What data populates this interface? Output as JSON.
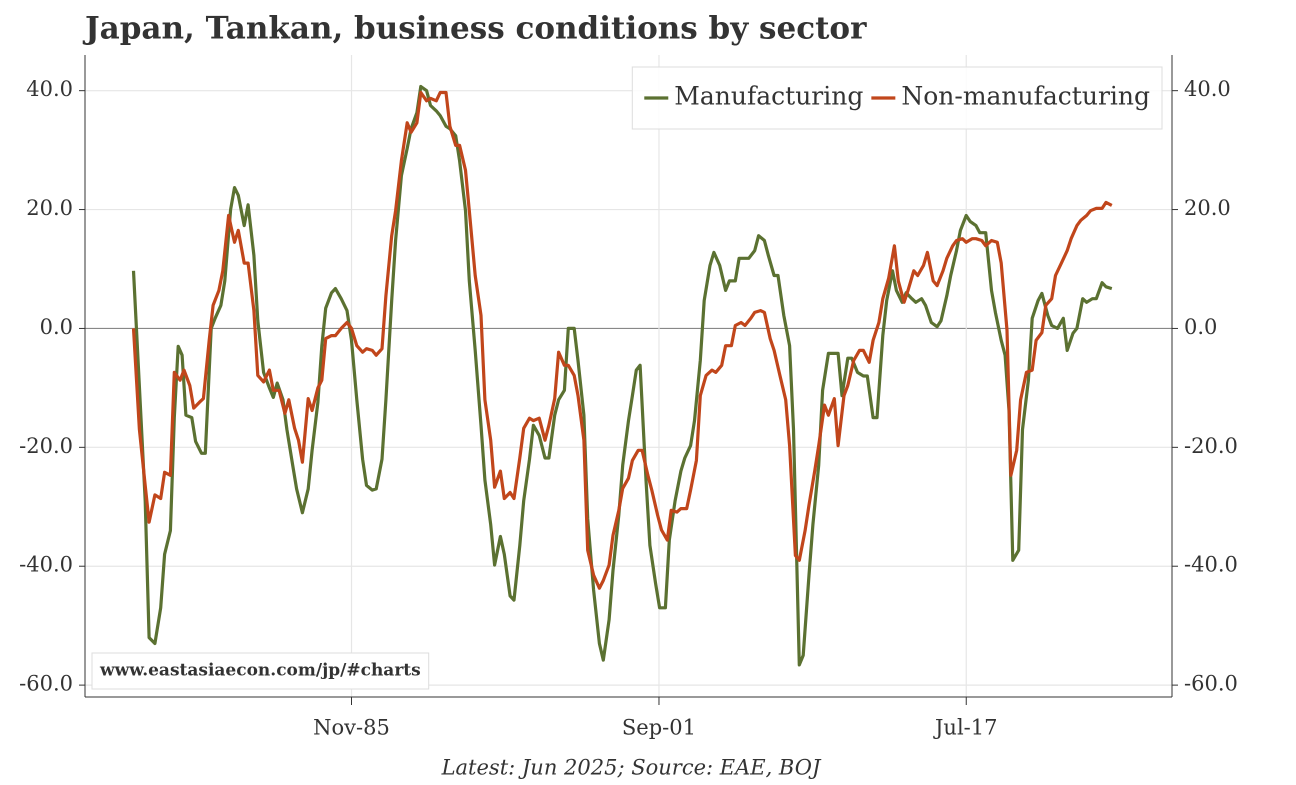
{
  "chart_data": {
    "type": "line",
    "title": "Japan, Tankan, business conditions by sector",
    "footnote": "Latest: Jun 2025; Source: EAE, BOJ",
    "watermark": "www.eastasiaecon.com/jp/#charts",
    "xlim": [
      1972.1,
      2028.1
    ],
    "xticks": [
      {
        "value": 1985.83,
        "label": "Nov-85"
      },
      {
        "value": 2001.67,
        "label": "Sep-01"
      },
      {
        "value": 2017.5,
        "label": "Jul-17"
      }
    ],
    "ylim": [
      -62,
      46
    ],
    "yticks": [
      {
        "value": -60,
        "label": "-60.0"
      },
      {
        "value": -40,
        "label": "-40.0"
      },
      {
        "value": -20,
        "label": "-20.0"
      },
      {
        "value": 0,
        "label": "0.0"
      },
      {
        "value": 20,
        "label": "20.0"
      },
      {
        "value": 40,
        "label": "40.0"
      }
    ],
    "grid": true,
    "legend": "upper right",
    "series": [
      {
        "name": "Manufacturing",
        "color": "#5b7131",
        "x": [
          1974.6,
          1975.2,
          1975.4,
          1975.7,
          1976.0,
          1976.2,
          1976.5,
          1976.7,
          1976.9,
          1977.1,
          1977.3,
          1977.6,
          1977.8,
          1978.1,
          1978.3,
          1978.6,
          1978.8,
          1979.1,
          1979.3,
          1979.6,
          1979.8,
          1980.0,
          1980.3,
          1980.5,
          1980.8,
          1981.0,
          1981.3,
          1981.6,
          1981.8,
          1982.0,
          1982.3,
          1982.5,
          1982.8,
          1983.0,
          1983.3,
          1983.6,
          1983.8,
          1984.1,
          1984.3,
          1984.5,
          1984.8,
          1985.0,
          1985.3,
          1985.6,
          1985.83,
          1986.1,
          1986.4,
          1986.6,
          1986.9,
          1987.1,
          1987.4,
          1987.6,
          1987.9,
          1988.1,
          1988.4,
          1988.7,
          1988.9,
          1989.2,
          1989.4,
          1989.7,
          1989.9,
          1990.2,
          1990.4,
          1990.7,
          1990.9,
          1991.2,
          1991.4,
          1991.7,
          1991.9,
          1992.2,
          1992.5,
          1992.7,
          1993.0,
          1993.2,
          1993.5,
          1993.7,
          1994.0,
          1994.2,
          1994.5,
          1994.7,
          1995.0,
          1995.2,
          1995.5,
          1995.8,
          1996.0,
          1996.3,
          1996.5,
          1996.8,
          1997.0,
          1997.3,
          1997.5,
          1997.8,
          1998.0,
          1998.3,
          1998.6,
          1998.8,
          1999.1,
          1999.3,
          1999.6,
          1999.8,
          2000.1,
          2000.3,
          2000.5,
          2000.7,
          2001.0,
          2001.2,
          2001.5,
          2001.7,
          2002.0,
          2002.2,
          2002.5,
          2002.8,
          2003.0,
          2003.3,
          2003.5,
          2003.8,
          2004.0,
          2004.3,
          2004.5,
          2004.8,
          2005.1,
          2005.3,
          2005.6,
          2005.8,
          2006.1,
          2006.3,
          2006.6,
          2006.8,
          2007.1,
          2007.3,
          2007.6,
          2007.8,
          2008.1,
          2008.4,
          2008.6,
          2008.9,
          2009.1,
          2009.4,
          2009.6,
          2009.9,
          2010.1,
          2010.4,
          2010.6,
          2010.9,
          2011.1,
          2011.4,
          2011.6,
          2011.9,
          2012.2,
          2012.4,
          2012.7,
          2012.9,
          2013.2,
          2013.4,
          2013.7,
          2013.9,
          2014.2,
          2014.4,
          2014.7,
          2014.9,
          2015.2,
          2015.4,
          2015.7,
          2016.0,
          2016.2,
          2016.5,
          2016.7,
          2017.0,
          2017.2,
          2017.5,
          2017.7,
          2018.0,
          2018.2,
          2018.5,
          2018.8,
          2019.0,
          2019.3,
          2019.5,
          2019.7,
          2019.9,
          2020.2,
          2020.4,
          2020.7,
          2020.9,
          2021.2,
          2021.4,
          2021.7,
          2021.9,
          2022.2,
          2022.5,
          2022.7,
          2023.0,
          2023.2,
          2023.5,
          2023.7,
          2024.0,
          2024.2,
          2024.5,
          2024.7,
          2025.0
        ],
        "values": [
          9.7,
          -29,
          -52,
          -53,
          -47,
          -38,
          -34,
          -15,
          -3,
          -4.5,
          -14.6,
          -15,
          -19,
          -21,
          -21,
          0,
          1.7,
          3.9,
          8,
          20,
          23.7,
          22.4,
          17.3,
          20.8,
          12.3,
          1.3,
          -7.4,
          -10,
          -11.6,
          -9.2,
          -12,
          -17,
          -23,
          -27,
          -31,
          -27,
          -20.5,
          -12.4,
          -3,
          3.4,
          6,
          6.7,
          5,
          3,
          -2,
          -12,
          -22,
          -26.4,
          -27.2,
          -27,
          -22,
          -12,
          4.7,
          14.8,
          25.7,
          30.3,
          33.6,
          36.3,
          40.7,
          40,
          37.5,
          36.6,
          35.8,
          34,
          33.6,
          32.4,
          28.2,
          19.8,
          8,
          -3.7,
          -16.3,
          -25.5,
          -33,
          -39.8,
          -35,
          -38,
          -45,
          -45.7,
          -36.5,
          -29,
          -22,
          -16.3,
          -18,
          -21.8,
          -21.8,
          -14.6,
          -12,
          -10.4,
          0,
          0,
          -5.4,
          -14.6,
          -32,
          -44,
          -53,
          -55.8,
          -49,
          -40.7,
          -31.4,
          -23,
          -15.5,
          -11.3,
          -7,
          -6.2,
          -25.5,
          -36.5,
          -43,
          -47,
          -47,
          -35.6,
          -29,
          -24,
          -21.8,
          -19.7,
          -15.5,
          -5.4,
          4.7,
          10.6,
          12.8,
          10.6,
          6.4,
          8,
          8,
          11.8,
          11.8,
          11.8,
          13.1,
          15.6,
          14.8,
          12.3,
          8.9,
          8.9,
          2.2,
          -2.9,
          -17,
          -56.6,
          -55,
          -41.5,
          -33,
          -23,
          -10.4,
          -4.2,
          -4.2,
          -4.2,
          -11.3,
          -5,
          -5,
          -7.4,
          -8,
          -8,
          -15,
          -15,
          -1.2,
          4.7,
          9.7,
          6.4,
          4.4,
          6,
          5,
          4.4,
          5,
          3.9,
          1,
          0.3,
          1.3,
          5.5,
          8.9,
          13.1,
          16.5,
          19,
          18,
          17.3,
          16.1,
          16.1,
          6.4,
          2.7,
          -2,
          -4.5,
          -13.8,
          -39,
          -37.3,
          -17,
          -8.7,
          1.7,
          4.7,
          5.9,
          2.2,
          0.5,
          0,
          1.7,
          -3.7,
          -0.8,
          0,
          5,
          4.4,
          5,
          5,
          7.7,
          7,
          6.7
        ]
      },
      {
        "name": "Non-manufacturing",
        "color": "#c1461b",
        "x": [
          1974.6,
          1974.9,
          1975.2,
          1975.4,
          1975.7,
          1976.0,
          1976.2,
          1976.5,
          1976.7,
          1977.0,
          1977.2,
          1977.5,
          1977.7,
          1978.0,
          1978.2,
          1978.5,
          1978.7,
          1979.0,
          1979.2,
          1979.5,
          1979.8,
          1980.0,
          1980.3,
          1980.5,
          1980.8,
          1981.0,
          1981.3,
          1981.6,
          1981.8,
          1982.1,
          1982.4,
          1982.6,
          1982.9,
          1983.1,
          1983.3,
          1983.6,
          1983.8,
          1984.1,
          1984.3,
          1984.5,
          1984.8,
          1985.0,
          1985.3,
          1985.6,
          1985.83,
          1986.1,
          1986.4,
          1986.6,
          1986.9,
          1987.1,
          1987.4,
          1987.6,
          1987.9,
          1988.1,
          1988.4,
          1988.7,
          1988.9,
          1989.2,
          1989.4,
          1989.7,
          1989.9,
          1990.2,
          1990.4,
          1990.7,
          1990.9,
          1991.2,
          1991.4,
          1991.7,
          1991.9,
          1992.2,
          1992.5,
          1992.7,
          1993.0,
          1993.2,
          1993.5,
          1993.7,
          1994.0,
          1994.2,
          1994.5,
          1994.7,
          1995.0,
          1995.2,
          1995.5,
          1995.8,
          1996.0,
          1996.3,
          1996.5,
          1996.8,
          1997.0,
          1997.3,
          1997.5,
          1997.8,
          1998.0,
          1998.3,
          1998.6,
          1998.8,
          1999.1,
          1999.3,
          1999.6,
          1999.8,
          2000.1,
          2000.3,
          2000.6,
          2000.8,
          2001.1,
          2001.3,
          2001.6,
          2001.8,
          2002.1,
          2002.3,
          2002.6,
          2002.8,
          2003.1,
          2003.3,
          2003.6,
          2003.8,
          2004.1,
          2004.4,
          2004.6,
          2004.9,
          2005.1,
          2005.4,
          2005.6,
          2005.9,
          2006.1,
          2006.4,
          2006.6,
          2006.9,
          2007.1,
          2007.4,
          2007.6,
          2007.9,
          2008.2,
          2008.4,
          2008.7,
          2008.9,
          2009.2,
          2009.4,
          2009.7,
          2009.9,
          2010.2,
          2010.4,
          2010.7,
          2010.9,
          2011.2,
          2011.4,
          2011.7,
          2012.0,
          2012.2,
          2012.5,
          2012.7,
          2013.0,
          2013.2,
          2013.5,
          2013.8,
          2014.0,
          2014.3,
          2014.5,
          2014.8,
          2015.0,
          2015.3,
          2015.5,
          2015.8,
          2016.0,
          2016.3,
          2016.5,
          2016.8,
          2017.0,
          2017.3,
          2017.5,
          2017.8,
          2018.0,
          2018.3,
          2018.5,
          2018.8,
          2019.1,
          2019.3,
          2019.6,
          2019.8,
          2020.1,
          2020.3,
          2020.6,
          2020.9,
          2021.1,
          2021.4,
          2021.6,
          2021.9,
          2022.1,
          2022.4,
          2022.7,
          2022.9,
          2023.2,
          2023.4,
          2023.7,
          2023.9,
          2024.2,
          2024.5,
          2024.7,
          2025.0
        ],
        "values": [
          0,
          -17,
          -26.4,
          -32.6,
          -28,
          -28.6,
          -24.2,
          -24.7,
          -7.4,
          -8.7,
          -7,
          -9.6,
          -13.4,
          -12.4,
          -11.8,
          -2,
          3.9,
          6.4,
          9.7,
          19,
          14.5,
          16.5,
          11,
          11,
          3,
          -7.9,
          -9,
          -7,
          -10.4,
          -10.4,
          -14.3,
          -12,
          -16.8,
          -18.8,
          -22.5,
          -11.8,
          -13.8,
          -10,
          -8.7,
          -1.7,
          -1.2,
          -1.2,
          0,
          1,
          0,
          -2.9,
          -4,
          -3.4,
          -3.7,
          -4.5,
          -3.4,
          5.5,
          15.6,
          19.8,
          28.2,
          34.6,
          33,
          34.6,
          39.7,
          38.3,
          38.7,
          38.3,
          39.7,
          39.7,
          34,
          30.8,
          30.8,
          26.6,
          19.8,
          8.9,
          2.2,
          -12,
          -18.8,
          -26.7,
          -24,
          -28.6,
          -27.6,
          -28.6,
          -21.8,
          -16.8,
          -15.1,
          -15.5,
          -15.1,
          -18.8,
          -16.3,
          -11.8,
          -4,
          -6.2,
          -6.2,
          -7.9,
          -11.3,
          -18.8,
          -37.3,
          -41.5,
          -43.7,
          -42.4,
          -39.8,
          -34.8,
          -30.6,
          -26.9,
          -25.2,
          -22.2,
          -20.5,
          -20.5,
          -24.7,
          -27.2,
          -31.4,
          -33.9,
          -35.6,
          -30.6,
          -30.9,
          -30.3,
          -30.3,
          -27.2,
          -22.2,
          -11.3,
          -7.9,
          -7,
          -7.4,
          -6.2,
          -2.9,
          -2.9,
          0.5,
          1,
          0.5,
          1.7,
          2.7,
          3,
          2.7,
          -1.7,
          -3.7,
          -7.9,
          -12,
          -19.7,
          -38.2,
          -39,
          -34,
          -29.7,
          -23.9,
          -19.7,
          -12.9,
          -14.6,
          -11.8,
          -19.7,
          -11.3,
          -9.6,
          -5.4,
          -3.7,
          -3.7,
          -5.7,
          -2,
          1,
          5,
          8.4,
          13.9,
          8,
          4.4,
          6.4,
          9.7,
          8.9,
          10.6,
          12.8,
          8,
          7.2,
          9.7,
          11.8,
          13.9,
          14.8,
          15.1,
          14.5,
          15.1,
          15.1,
          14.8,
          13.9,
          14.8,
          14.5,
          11,
          -0.3,
          -24.7,
          -20.5,
          -12,
          -7.4,
          -7,
          -2,
          -0.7,
          3.9,
          5,
          8.9,
          11,
          13.1,
          15.1,
          17.3,
          18.2,
          19,
          19.8,
          20.2,
          20.2,
          21.2,
          20.7
        ]
      }
    ]
  }
}
